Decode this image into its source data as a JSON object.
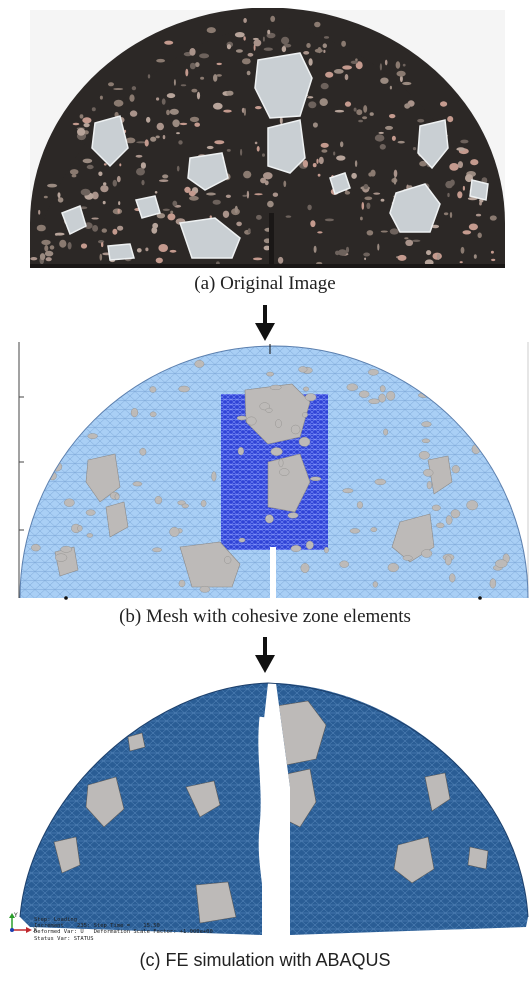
{
  "captions": {
    "a": "(a) Original Image",
    "b": "(b) Mesh with cohesive zone elements",
    "c": "(c) FE simulation with ABAQUS"
  },
  "abaqus_status": {
    "step": "Step: Loading",
    "increment": "Increment    235: Step Time =    15.50",
    "deformed_var": "Deformed Var: U   Deformation Scale Factor: +1.000e+00",
    "status_var": "Status Var: STATUS"
  },
  "triad": {
    "y_label": "Y",
    "x_label": "X"
  },
  "colors": {
    "asphalt": "#2c2826",
    "mesh_light": "#a9cff5",
    "mesh_dense": "#2f43d6",
    "aggregate": "#b9b5b1",
    "sim_blue": "#2a5d95",
    "arrow": "#111111"
  }
}
